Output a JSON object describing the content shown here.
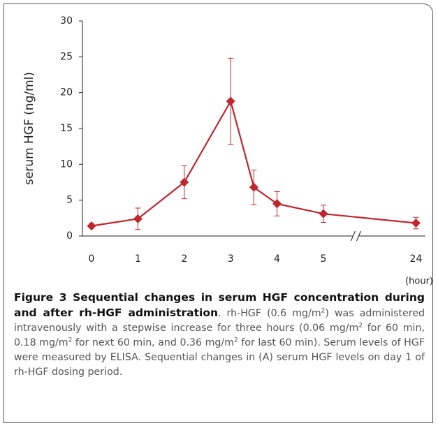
{
  "chart_data": {
    "type": "line",
    "y_label": "serum HGF (ng/ml)",
    "x_label": "(hour)",
    "x": [
      0,
      1,
      2,
      3,
      3.5,
      4,
      5,
      24
    ],
    "series": [
      {
        "color": "#c0262d",
        "values": [
          1.4,
          2.4,
          7.5,
          18.8,
          6.8,
          4.5,
          3.1,
          1.8
        ],
        "errors": [
          0.3,
          1.5,
          2.3,
          6,
          2.4,
          1.7,
          1.2,
          0.8
        ]
      }
    ],
    "xlim": [
      -0.2,
      24.2
    ],
    "xticks": [
      0,
      1,
      2,
      3,
      4,
      5,
      24
    ],
    "xbreak": [
      5.7,
      23.3
    ],
    "ylim": [
      0,
      30
    ],
    "yticks": [
      0,
      5,
      10,
      15,
      20,
      25,
      30
    ],
    "grid": false
  },
  "caption": {
    "title": "Figure 3 Sequential changes in serum HGF concentration during and after rh-HGF administration",
    "body": [
      ". rh-HGF (0.6 mg/m",
      "2",
      ") was administered intravenously with a stepwise increase for three hours (0.06 mg/m",
      "2",
      " for 60 min, 0.18 mg/m",
      "2",
      " for next 60 min, and 0.36 mg/m",
      "2",
      " for last 60 min). Serum levels of HGF were measured by ELISA. Sequential changes in (A) serum HGF levels on day 1 of rh-HGF dosing period."
    ]
  }
}
